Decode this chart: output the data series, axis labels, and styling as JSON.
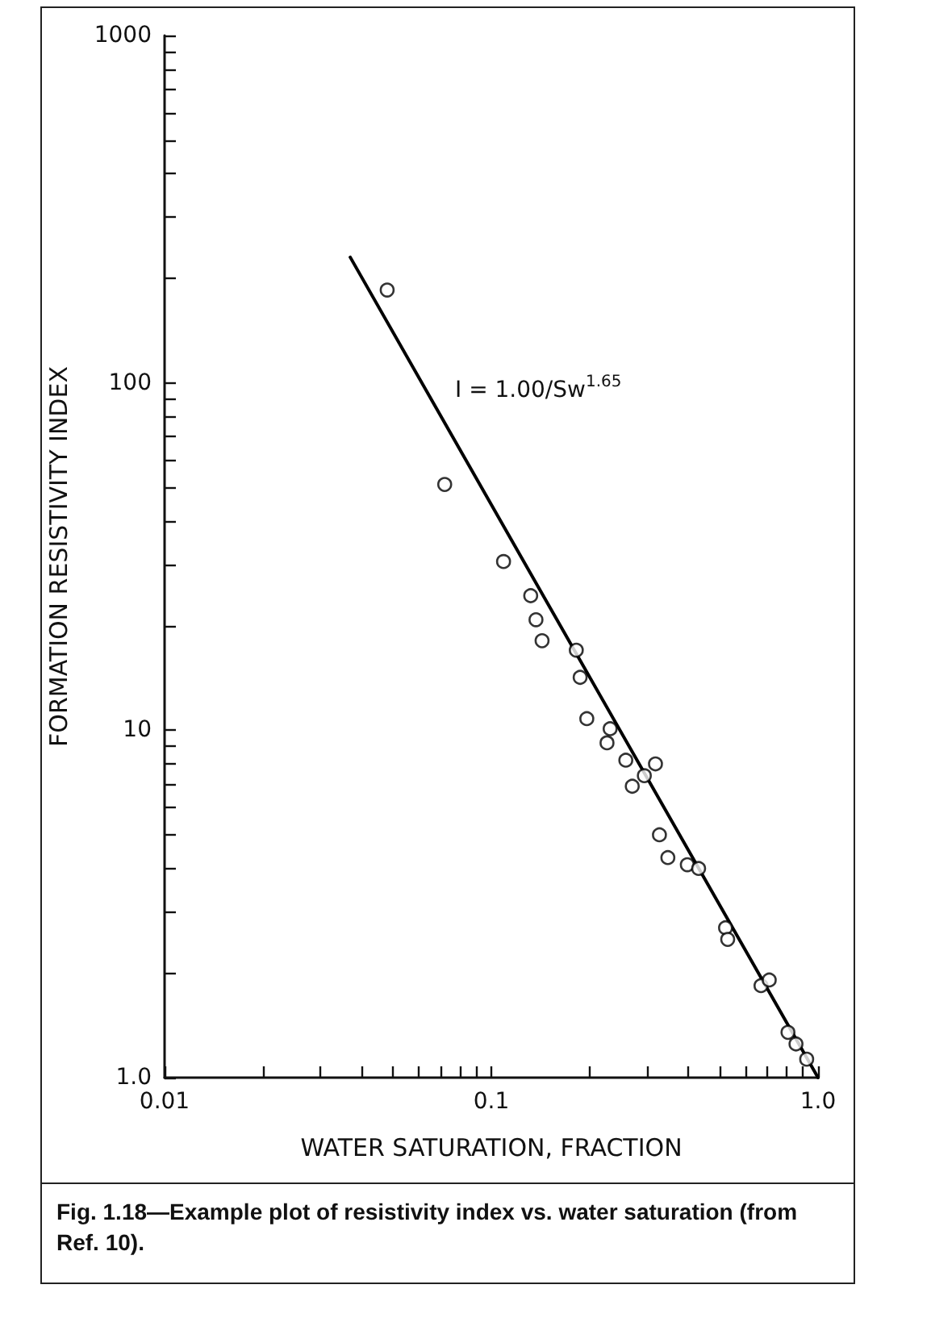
{
  "chart_data": {
    "type": "scatter",
    "xlabel": "WATER SATURATION, FRACTION",
    "ylabel": "FORMATION RESISTIVITY INDEX",
    "log": "xy",
    "xlim": [
      0.01,
      1.0
    ],
    "ylim": [
      1.0,
      1000
    ],
    "xticks": [
      {
        "value": 0.01,
        "label": "0.01"
      },
      {
        "value": 0.02,
        "label": null
      },
      {
        "value": 0.03,
        "label": null
      },
      {
        "value": 0.04,
        "label": null
      },
      {
        "value": 0.05,
        "label": null
      },
      {
        "value": 0.06,
        "label": null
      },
      {
        "value": 0.07,
        "label": null
      },
      {
        "value": 0.08,
        "label": null
      },
      {
        "value": 0.09,
        "label": null
      },
      {
        "value": 0.1,
        "label": "0.1"
      },
      {
        "value": 0.2,
        "label": null
      },
      {
        "value": 0.3,
        "label": null
      },
      {
        "value": 0.4,
        "label": null
      },
      {
        "value": 0.5,
        "label": null
      },
      {
        "value": 0.6,
        "label": null
      },
      {
        "value": 0.7,
        "label": null
      },
      {
        "value": 0.8,
        "label": null
      },
      {
        "value": 0.9,
        "label": null
      },
      {
        "value": 1.0,
        "label": "1.0"
      }
    ],
    "yticks": [
      {
        "value": 1,
        "label": "1.0"
      },
      {
        "value": 2,
        "label": null
      },
      {
        "value": 3,
        "label": null
      },
      {
        "value": 4,
        "label": null
      },
      {
        "value": 5,
        "label": null
      },
      {
        "value": 6,
        "label": null
      },
      {
        "value": 7,
        "label": null
      },
      {
        "value": 8,
        "label": null
      },
      {
        "value": 9,
        "label": null
      },
      {
        "value": 10,
        "label": "10"
      },
      {
        "value": 20,
        "label": null
      },
      {
        "value": 30,
        "label": null
      },
      {
        "value": 40,
        "label": null
      },
      {
        "value": 50,
        "label": null
      },
      {
        "value": 60,
        "label": null
      },
      {
        "value": 70,
        "label": null
      },
      {
        "value": 80,
        "label": null
      },
      {
        "value": 90,
        "label": null
      },
      {
        "value": 100,
        "label": "100"
      },
      {
        "value": 200,
        "label": null
      },
      {
        "value": 300,
        "label": null
      },
      {
        "value": 400,
        "label": null
      },
      {
        "value": 500,
        "label": null
      },
      {
        "value": 600,
        "label": null
      },
      {
        "value": 700,
        "label": null
      },
      {
        "value": 800,
        "label": null
      },
      {
        "value": 900,
        "label": null
      },
      {
        "value": 1000,
        "label": "1000"
      }
    ],
    "grid": false,
    "marker": "circle",
    "series": [
      {
        "color": "#000000",
        "x": [
          0.048,
          0.072,
          0.109,
          0.132,
          0.137,
          0.143,
          0.182,
          0.187,
          0.196,
          0.231,
          0.226,
          0.258,
          0.318,
          0.294,
          0.27,
          0.327,
          0.347,
          0.398,
          0.431,
          0.521,
          0.529,
          0.669,
          0.709,
          0.809,
          0.856,
          0.923
        ],
        "values": [
          185,
          51,
          30.6,
          24.4,
          20.8,
          18.1,
          17.0,
          14.2,
          10.8,
          10.1,
          9.2,
          8.2,
          8.0,
          7.4,
          6.9,
          5.0,
          4.3,
          4.1,
          4.0,
          2.7,
          2.5,
          1.84,
          1.91,
          1.35,
          1.25,
          1.13
        ]
      },
      {
        "type": "line",
        "color": "#000000",
        "marker": "none",
        "line_style": "solid",
        "x": [
          0.037,
          1.0
        ],
        "values": [
          230,
          1.0
        ]
      }
    ],
    "annotations": [
      "I = 1.00/Sw$^{1.65}$",
      "Fig. 1.18—Example plot of resistivity index vs. water saturation (from Ref. 10)."
    ]
  }
}
